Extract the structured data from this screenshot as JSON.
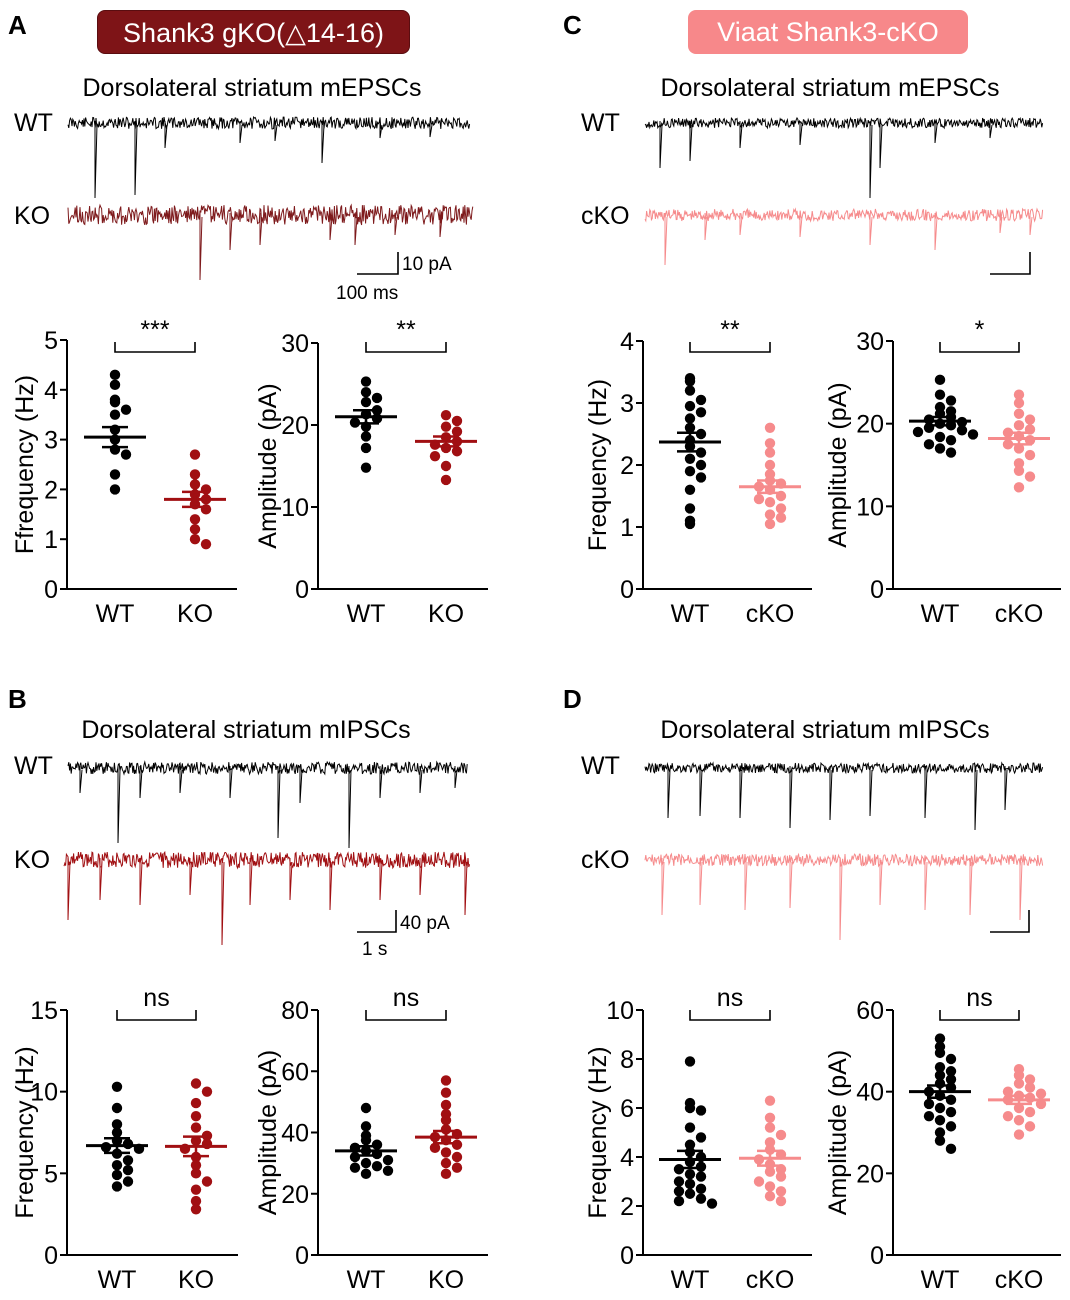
{
  "colors": {
    "wt": "#000000",
    "gko": "#a10f12",
    "gko_trace": "#7e1a1c",
    "cko": "#f68b8c",
    "banner_gko": "#7e1417",
    "banner_cko": "#f7888a"
  },
  "panels": {
    "A": {
      "letter": "A",
      "banner": "Shank3 gKO(△14-16)",
      "title": "Dorsolateral striatum mEPSCs",
      "trace_labels": [
        "WT",
        "KO"
      ],
      "scale_y": "10 pA",
      "scale_x": "100 ms"
    },
    "B": {
      "letter": "B",
      "title": "Dorsolateral striatum mIPSCs",
      "trace_labels": [
        "WT",
        "KO"
      ],
      "scale_y": "40 pA",
      "scale_x": "1 s"
    },
    "C": {
      "letter": "C",
      "banner": "Viaat Shank3-cKO",
      "title": "Dorsolateral striatum mEPSCs",
      "trace_labels": [
        "WT",
        "cKO"
      ]
    },
    "D": {
      "letter": "D",
      "title": "Dorsolateral striatum mIPSCs",
      "trace_labels": [
        "WT",
        "cKO"
      ]
    }
  },
  "chart_data": [
    {
      "id": "A-frequency",
      "type": "scatter",
      "ylabel": "Ffrequency (Hz)",
      "ylim": [
        0,
        5
      ],
      "yticks": [
        0,
        1,
        2,
        3,
        4,
        5
      ],
      "categories": [
        "WT",
        "KO"
      ],
      "significance": "***",
      "series": [
        {
          "name": "WT",
          "mean": 3.05,
          "sem": 0.2,
          "values": [
            4.3,
            4.1,
            3.8,
            3.75,
            3.6,
            3.5,
            3.2,
            3.0,
            2.8,
            2.7,
            2.3,
            2.0
          ]
        },
        {
          "name": "KO",
          "mean": 1.8,
          "sem": 0.15,
          "values": [
            2.7,
            2.3,
            2.1,
            2.0,
            1.9,
            1.8,
            1.7,
            1.6,
            1.4,
            1.2,
            1.0,
            0.9
          ]
        }
      ]
    },
    {
      "id": "A-amplitude",
      "type": "scatter",
      "ylabel": "Amplitude (pA)",
      "ylim": [
        0,
        30
      ],
      "yticks": [
        0,
        10,
        20,
        30
      ],
      "categories": [
        "WT",
        "KO"
      ],
      "significance": "**",
      "series": [
        {
          "name": "WT",
          "mean": 21.0,
          "sem": 0.8,
          "values": [
            25.3,
            24.0,
            23.3,
            22.8,
            21.8,
            21.3,
            20.8,
            20.3,
            19.8,
            18.6,
            17.2,
            14.8
          ]
        },
        {
          "name": "KO",
          "mean": 18.0,
          "sem": 0.6,
          "values": [
            21.2,
            20.5,
            19.8,
            19.2,
            18.5,
            18.0,
            17.6,
            17.2,
            16.8,
            16.2,
            15.0,
            13.3
          ]
        }
      ]
    },
    {
      "id": "C-frequency",
      "type": "scatter",
      "ylabel": "Frequency (Hz)",
      "ylim": [
        0,
        4
      ],
      "yticks": [
        0,
        1,
        2,
        3,
        4
      ],
      "categories": [
        "WT",
        "cKO"
      ],
      "significance": "**",
      "series": [
        {
          "name": "WT",
          "mean": 2.37,
          "sem": 0.15,
          "values": [
            3.4,
            3.35,
            3.2,
            3.05,
            2.95,
            2.85,
            2.75,
            2.6,
            2.5,
            2.4,
            2.3,
            2.2,
            2.1,
            2.0,
            1.9,
            1.8,
            1.6,
            1.3,
            1.1,
            1.05
          ]
        },
        {
          "name": "cKO",
          "mean": 1.65,
          "sem": 0.1,
          "values": [
            2.6,
            2.35,
            2.2,
            2.0,
            1.85,
            1.75,
            1.7,
            1.65,
            1.6,
            1.5,
            1.45,
            1.4,
            1.3,
            1.2,
            1.15,
            1.05
          ]
        }
      ]
    },
    {
      "id": "C-amplitude",
      "type": "scatter",
      "ylabel": "Amplitude (pA)",
      "ylim": [
        0,
        30
      ],
      "yticks": [
        0,
        10,
        20,
        30
      ],
      "categories": [
        "WT",
        "cKO"
      ],
      "significance": "*",
      "series": [
        {
          "name": "WT",
          "mean": 20.3,
          "sem": 0.5,
          "values": [
            25.3,
            23.5,
            22.8,
            22.0,
            21.5,
            21.2,
            20.8,
            20.5,
            20.2,
            20.0,
            19.8,
            19.5,
            19.2,
            19.0,
            18.7,
            18.4,
            18.0,
            17.5,
            17.0,
            16.5
          ]
        },
        {
          "name": "cKO",
          "mean": 18.2,
          "sem": 0.7,
          "values": [
            23.5,
            22.5,
            21.2,
            20.5,
            19.8,
            19.3,
            18.9,
            18.5,
            18.0,
            17.5,
            17.0,
            16.2,
            15.2,
            14.3,
            13.6,
            12.3
          ]
        }
      ]
    },
    {
      "id": "B-frequency",
      "type": "scatter",
      "ylabel": "Frequency (Hz)",
      "ylim": [
        0,
        15
      ],
      "yticks": [
        0,
        5,
        10,
        15
      ],
      "categories": [
        "WT",
        "KO"
      ],
      "significance": "ns",
      "series": [
        {
          "name": "WT",
          "mean": 6.7,
          "sem": 0.45,
          "values": [
            10.3,
            9.0,
            8.0,
            7.5,
            7.0,
            6.8,
            6.6,
            6.5,
            6.2,
            5.8,
            5.5,
            5.2,
            4.9,
            4.5,
            4.2
          ]
        },
        {
          "name": "KO",
          "mean": 6.65,
          "sem": 0.6,
          "values": [
            10.5,
            10.0,
            9.3,
            8.5,
            7.8,
            7.3,
            7.0,
            6.8,
            6.5,
            6.0,
            5.5,
            5.0,
            4.5,
            4.0,
            3.3,
            2.8
          ]
        }
      ]
    },
    {
      "id": "B-amplitude",
      "type": "scatter",
      "ylabel": "Amplitude (pA)",
      "ylim": [
        0,
        80
      ],
      "yticks": [
        0,
        20,
        40,
        60,
        80
      ],
      "categories": [
        "WT",
        "KO"
      ],
      "significance": "ns",
      "series": [
        {
          "name": "WT",
          "mean": 34.0,
          "sem": 1.5,
          "values": [
            48.0,
            42.0,
            39.0,
            37.5,
            36.0,
            35.0,
            34.0,
            33.0,
            32.0,
            31.0,
            30.0,
            29.0,
            28.5,
            27.5,
            26.5
          ]
        },
        {
          "name": "KO",
          "mean": 38.5,
          "sem": 2.0,
          "values": [
            57.0,
            53.0,
            49.0,
            46.0,
            44.0,
            41.0,
            39.5,
            38.5,
            37.5,
            36.0,
            35.0,
            33.5,
            32.0,
            30.0,
            28.5,
            26.5
          ]
        }
      ]
    },
    {
      "id": "D-frequency",
      "type": "scatter",
      "ylabel": "Frequency (Hz)",
      "ylim": [
        0,
        10
      ],
      "yticks": [
        0,
        2,
        4,
        6,
        8,
        10
      ],
      "categories": [
        "WT",
        "cKO"
      ],
      "significance": "ns",
      "series": [
        {
          "name": "WT",
          "mean": 3.9,
          "sem": 0.35,
          "values": [
            7.9,
            6.2,
            6.0,
            5.9,
            5.2,
            4.8,
            4.5,
            4.2,
            4.0,
            3.8,
            3.6,
            3.5,
            3.3,
            3.2,
            3.0,
            2.9,
            2.7,
            2.6,
            2.5,
            2.3,
            2.2,
            2.1
          ]
        },
        {
          "name": "cKO",
          "mean": 3.95,
          "sem": 0.3,
          "values": [
            6.3,
            5.6,
            5.2,
            4.9,
            4.6,
            4.3,
            4.1,
            3.9,
            3.7,
            3.5,
            3.4,
            3.2,
            3.0,
            2.8,
            2.6,
            2.4,
            2.2
          ]
        }
      ]
    },
    {
      "id": "D-amplitude",
      "type": "scatter",
      "ylabel": "Amplitude (pA)",
      "ylim": [
        0,
        60
      ],
      "yticks": [
        0,
        20,
        40,
        60
      ],
      "categories": [
        "WT",
        "cKO"
      ],
      "significance": "ns",
      "series": [
        {
          "name": "WT",
          "mean": 40.0,
          "sem": 1.5,
          "values": [
            53.0,
            51.0,
            49.5,
            48.0,
            46.0,
            45.0,
            44.0,
            43.0,
            42.0,
            41.0,
            40.0,
            39.0,
            38.0,
            37.0,
            36.0,
            35.0,
            34.0,
            33.0,
            31.5,
            30.0,
            28.0,
            26.0
          ]
        },
        {
          "name": "cKO",
          "mean": 38.0,
          "sem": 1.0,
          "values": [
            45.5,
            44.0,
            43.0,
            42.0,
            41.0,
            40.0,
            39.5,
            39.0,
            38.5,
            38.0,
            37.0,
            36.0,
            35.0,
            34.0,
            33.0,
            31.5,
            29.5
          ]
        }
      ]
    }
  ]
}
